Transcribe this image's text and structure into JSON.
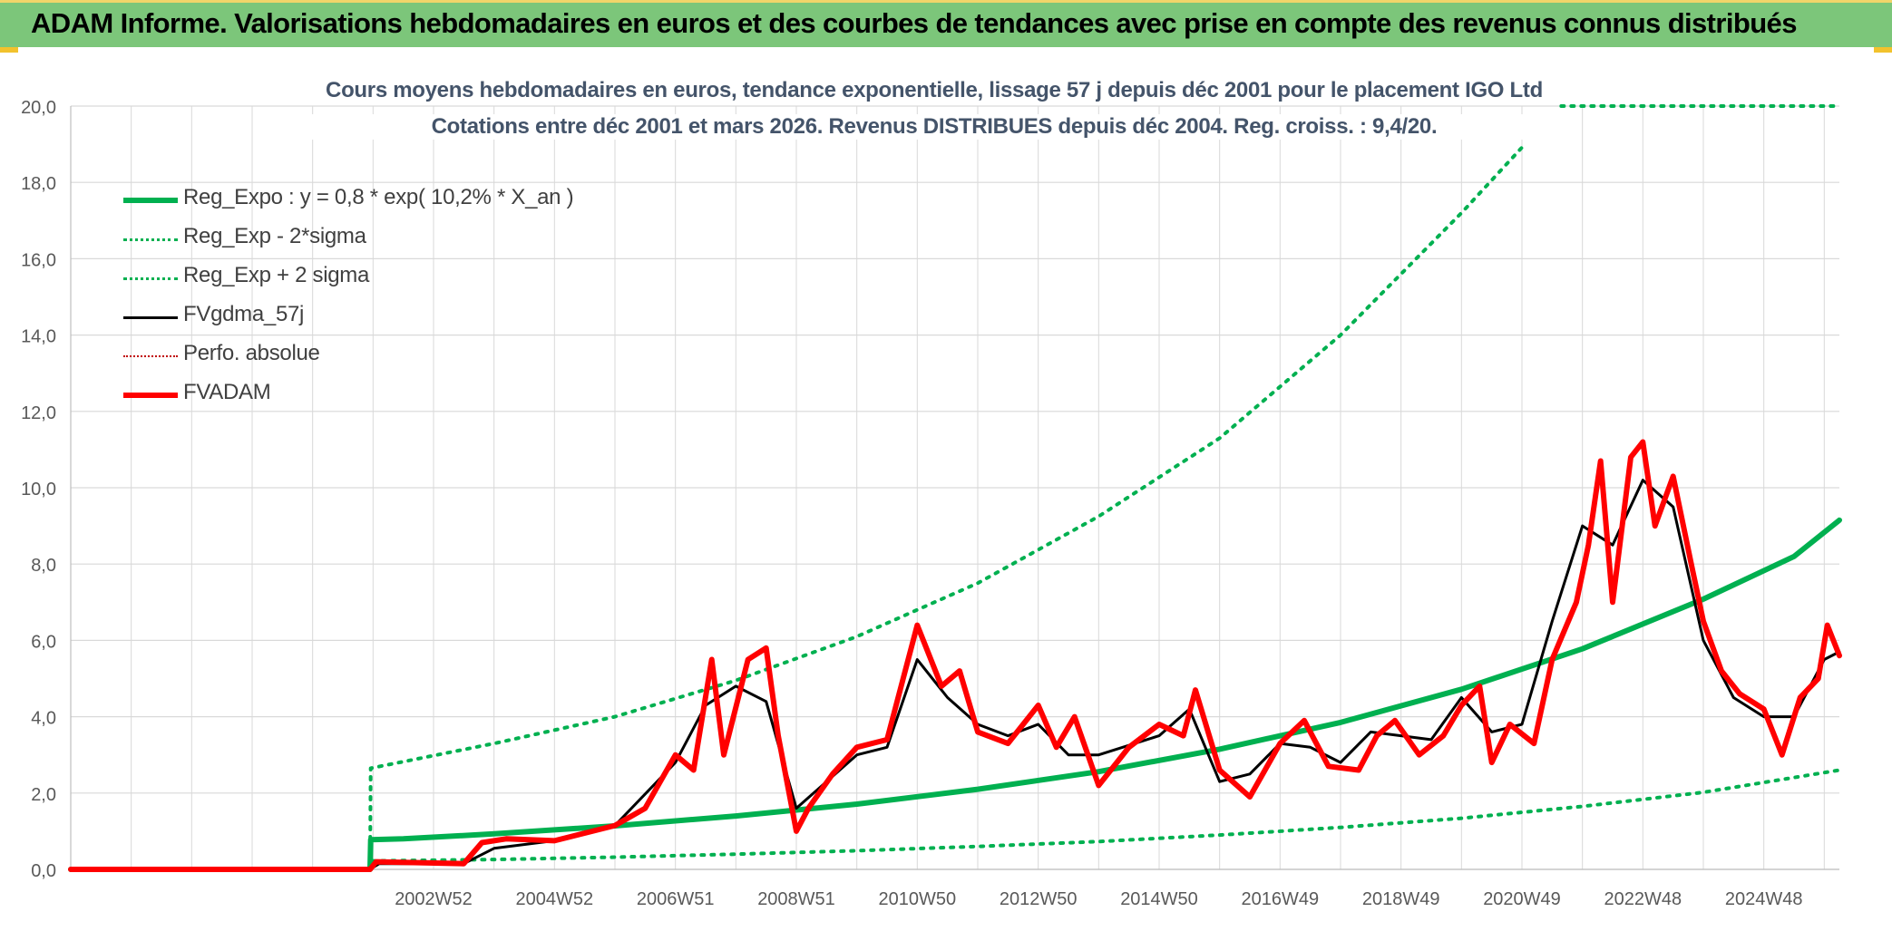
{
  "header": {
    "title": "ADAM Informe. Valorisations hebdomadaires en euros et des courbes de tendances avec prise en compte des revenus connus distribués"
  },
  "chart_data": {
    "type": "line",
    "title": "Cours moyens hebdomadaires en euros, tendance exponentielle, lissage 57 j depuis déc 2001 pour le placement IGO Ltd",
    "subtitle": "Cotations entre déc 2001 et mars 2026. Revenus DISTRIBUES depuis déc 2004. Reg. croiss. : 9,4/20.",
    "xlabel": "",
    "ylabel": "",
    "x_range": [
      1997.0,
      2026.25
    ],
    "ylim": [
      0,
      20
    ],
    "yticks": [
      "0,0",
      "2,0",
      "4,0",
      "6,0",
      "8,0",
      "10,0",
      "12,0",
      "14,0",
      "16,0",
      "18,0",
      "20,0"
    ],
    "xticks": [
      {
        "label": "2002W52",
        "x": 2003.0
      },
      {
        "label": "2004W52",
        "x": 2005.0
      },
      {
        "label": "2006W51",
        "x": 2007.0
      },
      {
        "label": "2008W51",
        "x": 2009.0
      },
      {
        "label": "2010W50",
        "x": 2011.0
      },
      {
        "label": "2012W50",
        "x": 2013.0
      },
      {
        "label": "2014W50",
        "x": 2015.0
      },
      {
        "label": "2016W49",
        "x": 2017.0
      },
      {
        "label": "2018W49",
        "x": 2019.0
      },
      {
        "label": "2020W49",
        "x": 2021.0
      },
      {
        "label": "2022W48",
        "x": 2023.0
      },
      {
        "label": "2024W48",
        "x": 2025.0
      }
    ],
    "grid": true,
    "legend_position": "top-left",
    "colors": {
      "trend": "#00b050",
      "smooth": "#000000",
      "perf": "#c00000",
      "adam": "#ff0000",
      "grid": "#d9d9d9",
      "axis_text": "#595959"
    },
    "series": [
      {
        "name": "Reg_Expo : y = 0,8 * exp( 10,2% *  X_an )",
        "style": "solid-thick",
        "color": "#00b050",
        "points": [
          [
            1997.0,
            0
          ],
          [
            2001.95,
            0
          ],
          [
            2001.96,
            0.78
          ],
          [
            2002.5,
            0.8
          ],
          [
            2004,
            0.93
          ],
          [
            2006,
            1.14
          ],
          [
            2008,
            1.4
          ],
          [
            2010,
            1.71
          ],
          [
            2012,
            2.1
          ],
          [
            2014,
            2.56
          ],
          [
            2016,
            3.15
          ],
          [
            2018,
            3.85
          ],
          [
            2020,
            4.72
          ],
          [
            2022,
            5.78
          ],
          [
            2024,
            7.08
          ],
          [
            2025.5,
            8.2
          ],
          [
            2026.25,
            9.15
          ]
        ]
      },
      {
        "name": "Reg_Exp - 2*sigma",
        "style": "dotted",
        "color": "#00b050",
        "points": [
          [
            1997.0,
            0
          ],
          [
            2001.95,
            0
          ],
          [
            2001.96,
            0.22
          ],
          [
            2004,
            0.26
          ],
          [
            2006,
            0.32
          ],
          [
            2008,
            0.4
          ],
          [
            2010,
            0.49
          ],
          [
            2012,
            0.6
          ],
          [
            2014,
            0.73
          ],
          [
            2016,
            0.9
          ],
          [
            2018,
            1.1
          ],
          [
            2020,
            1.34
          ],
          [
            2022,
            1.65
          ],
          [
            2024,
            2.02
          ],
          [
            2026.25,
            2.6
          ]
        ]
      },
      {
        "name": "Reg_Exp + 2 sigma",
        "style": "dotted",
        "color": "#00b050",
        "points": [
          [
            1997.0,
            0
          ],
          [
            2001.95,
            0
          ],
          [
            2001.96,
            2.65
          ],
          [
            2004,
            3.3
          ],
          [
            2006,
            4.0
          ],
          [
            2008,
            4.95
          ],
          [
            2010,
            6.1
          ],
          [
            2011,
            6.8
          ],
          [
            2012,
            7.5
          ],
          [
            2014,
            9.25
          ],
          [
            2016,
            11.3
          ],
          [
            2018,
            14.0
          ],
          [
            2020,
            17.2
          ],
          [
            2021.05,
            19.0
          ]
        ],
        "cap_segment": [
          [
            2021.65,
            20.0
          ],
          [
            2026.25,
            20.0
          ]
        ]
      },
      {
        "name": "FVgdma_57j",
        "style": "solid",
        "color": "#000000",
        "points": [
          [
            1997.0,
            0
          ],
          [
            2001.95,
            0
          ],
          [
            2002.1,
            0.15
          ],
          [
            2003.5,
            0.15
          ],
          [
            2004,
            0.55
          ],
          [
            2005,
            0.75
          ],
          [
            2006,
            1.15
          ],
          [
            2007,
            2.8
          ],
          [
            2007.5,
            4.3
          ],
          [
            2008,
            4.8
          ],
          [
            2008.5,
            4.4
          ],
          [
            2009,
            1.6
          ],
          [
            2009.5,
            2.3
          ],
          [
            2010,
            3.0
          ],
          [
            2010.5,
            3.2
          ],
          [
            2011,
            5.5
          ],
          [
            2011.5,
            4.5
          ],
          [
            2012,
            3.8
          ],
          [
            2012.5,
            3.5
          ],
          [
            2013,
            3.8
          ],
          [
            2013.5,
            3.0
          ],
          [
            2014,
            3.0
          ],
          [
            2015,
            3.5
          ],
          [
            2015.5,
            4.2
          ],
          [
            2016,
            2.3
          ],
          [
            2016.5,
            2.5
          ],
          [
            2017,
            3.3
          ],
          [
            2017.5,
            3.2
          ],
          [
            2018,
            2.8
          ],
          [
            2018.5,
            3.6
          ],
          [
            2019,
            3.5
          ],
          [
            2019.5,
            3.4
          ],
          [
            2020,
            4.5
          ],
          [
            2020.5,
            3.6
          ],
          [
            2021,
            3.8
          ],
          [
            2021.5,
            6.5
          ],
          [
            2022,
            9.0
          ],
          [
            2022.5,
            8.5
          ],
          [
            2023,
            10.2
          ],
          [
            2023.5,
            9.5
          ],
          [
            2024,
            6.0
          ],
          [
            2024.5,
            4.5
          ],
          [
            2025,
            4.0
          ],
          [
            2025.5,
            4.0
          ],
          [
            2026,
            5.5
          ],
          [
            2026.25,
            5.7
          ]
        ]
      },
      {
        "name": "Perfo. absolue",
        "style": "dotted-thin",
        "color": "#c00000",
        "points": []
      },
      {
        "name": "FVADAM",
        "style": "solid-thick",
        "color": "#ff0000",
        "points": [
          [
            1997.0,
            0
          ],
          [
            2001.95,
            0
          ],
          [
            2002.05,
            0.2
          ],
          [
            2003.5,
            0.15
          ],
          [
            2003.8,
            0.7
          ],
          [
            2004.2,
            0.8
          ],
          [
            2005,
            0.75
          ],
          [
            2006,
            1.15
          ],
          [
            2006.5,
            1.6
          ],
          [
            2007,
            3.0
          ],
          [
            2007.3,
            2.6
          ],
          [
            2007.6,
            5.5
          ],
          [
            2007.8,
            3.0
          ],
          [
            2008.2,
            5.5
          ],
          [
            2008.5,
            5.8
          ],
          [
            2008.7,
            3.5
          ],
          [
            2009,
            1.0
          ],
          [
            2009.2,
            1.6
          ],
          [
            2009.6,
            2.5
          ],
          [
            2010,
            3.2
          ],
          [
            2010.5,
            3.4
          ],
          [
            2011,
            6.4
          ],
          [
            2011.4,
            4.8
          ],
          [
            2011.7,
            5.2
          ],
          [
            2012,
            3.6
          ],
          [
            2012.5,
            3.3
          ],
          [
            2013,
            4.3
          ],
          [
            2013.3,
            3.2
          ],
          [
            2013.6,
            4.0
          ],
          [
            2014,
            2.2
          ],
          [
            2014.5,
            3.2
          ],
          [
            2015,
            3.8
          ],
          [
            2015.4,
            3.5
          ],
          [
            2015.6,
            4.7
          ],
          [
            2016,
            2.6
          ],
          [
            2016.5,
            1.9
          ],
          [
            2017,
            3.3
          ],
          [
            2017.4,
            3.9
          ],
          [
            2017.8,
            2.7
          ],
          [
            2018.3,
            2.6
          ],
          [
            2018.6,
            3.5
          ],
          [
            2018.9,
            3.9
          ],
          [
            2019.3,
            3.0
          ],
          [
            2019.7,
            3.5
          ],
          [
            2020,
            4.3
          ],
          [
            2020.3,
            4.8
          ],
          [
            2020.5,
            2.8
          ],
          [
            2020.8,
            3.8
          ],
          [
            2021.2,
            3.3
          ],
          [
            2021.5,
            5.5
          ],
          [
            2021.9,
            7.0
          ],
          [
            2022.1,
            8.5
          ],
          [
            2022.3,
            10.7
          ],
          [
            2022.5,
            7.0
          ],
          [
            2022.8,
            10.8
          ],
          [
            2023,
            11.2
          ],
          [
            2023.2,
            9.0
          ],
          [
            2023.5,
            10.3
          ],
          [
            2023.8,
            8.0
          ],
          [
            2024,
            6.5
          ],
          [
            2024.3,
            5.2
          ],
          [
            2024.6,
            4.6
          ],
          [
            2025,
            4.2
          ],
          [
            2025.3,
            3.0
          ],
          [
            2025.6,
            4.5
          ],
          [
            2025.9,
            5.0
          ],
          [
            2026.05,
            6.4
          ],
          [
            2026.25,
            5.6
          ]
        ]
      }
    ]
  }
}
